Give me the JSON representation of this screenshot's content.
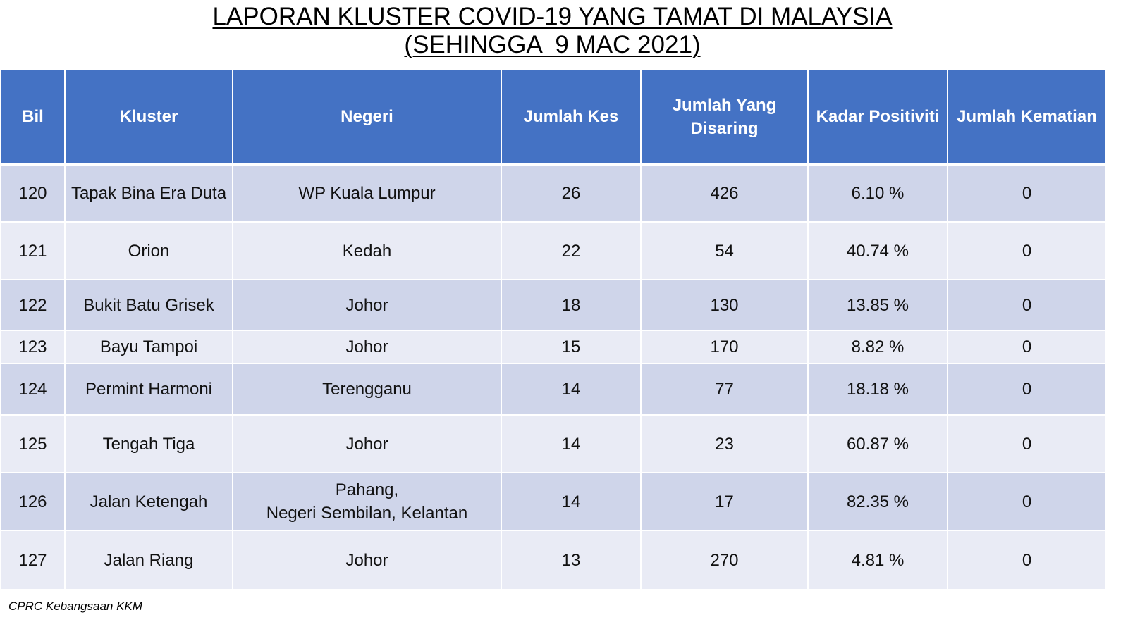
{
  "title": {
    "line1": "LAPORAN KLUSTER COVID-19 YANG TAMAT DI MALAYSIA",
    "line2": "(SEHINGGA  9 MAC 2021)"
  },
  "table": {
    "headers": {
      "bil": "Bil",
      "kluster": "Kluster",
      "negeri": "Negeri",
      "jumlah_kes": "Jumlah Kes",
      "jumlah_disaring_1": "Jumlah Yang",
      "jumlah_disaring_2": "Disaring",
      "kadar_positiviti": "Kadar Positiviti",
      "jumlah_kematian": "Jumlah Kematian"
    },
    "rows": [
      {
        "bil": "120",
        "kluster": "Tapak Bina Era Duta",
        "negeri": "WP Kuala Lumpur",
        "negeri2": "",
        "kes": "26",
        "disaring": "426",
        "positiviti": "6.10 %",
        "kematian": "0"
      },
      {
        "bil": "121",
        "kluster": "Orion",
        "negeri": "Kedah",
        "negeri2": "",
        "kes": "22",
        "disaring": "54",
        "positiviti": "40.74 %",
        "kematian": "0"
      },
      {
        "bil": "122",
        "kluster": "Bukit Batu Grisek",
        "negeri": "Johor",
        "negeri2": "",
        "kes": "18",
        "disaring": "130",
        "positiviti": "13.85 %",
        "kematian": "0"
      },
      {
        "bil": "123",
        "kluster": "Bayu Tampoi",
        "negeri": "Johor",
        "negeri2": "",
        "kes": "15",
        "disaring": "170",
        "positiviti": "8.82 %",
        "kematian": "0"
      },
      {
        "bil": "124",
        "kluster": "Permint Harmoni",
        "negeri": "Terengganu",
        "negeri2": "",
        "kes": "14",
        "disaring": "77",
        "positiviti": "18.18 %",
        "kematian": "0"
      },
      {
        "bil": "125",
        "kluster": "Tengah Tiga",
        "negeri": "Johor",
        "negeri2": "",
        "kes": "14",
        "disaring": "23",
        "positiviti": "60.87 %",
        "kematian": "0"
      },
      {
        "bil": "126",
        "kluster": "Jalan Ketengah",
        "negeri": "Pahang,",
        "negeri2": "Negeri Sembilan, Kelantan",
        "kes": "14",
        "disaring": "17",
        "positiviti": "82.35 %",
        "kematian": "0"
      },
      {
        "bil": "127",
        "kluster": "Jalan Riang",
        "negeri": "Johor",
        "negeri2": "",
        "kes": "13",
        "disaring": "270",
        "positiviti": "4.81 %",
        "kematian": "0"
      }
    ]
  },
  "footer": {
    "source": "CPRC Kebangsaan KKM"
  },
  "colors": {
    "header_bg": "#4472C4",
    "row_odd_bg": "#CFD5EA",
    "row_even_bg": "#E9EBF5"
  }
}
